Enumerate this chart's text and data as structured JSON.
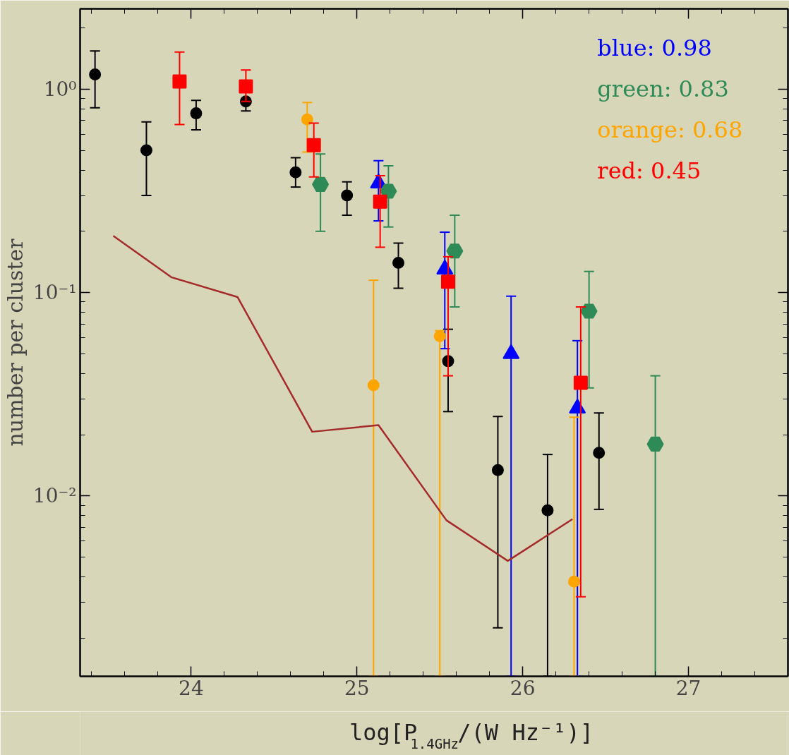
{
  "chart_data": {
    "type": "scatter",
    "xlabel": "log[P$_{1.4GHz}$/(W Hz⁻¹)]",
    "ylabel": "number per cluster",
    "log": "y",
    "xlim": [
      23.33,
      27.6
    ],
    "ylim": [
      0.0013,
      2.48
    ],
    "xticks": [
      24,
      25,
      26,
      27
    ],
    "yticks": [
      {
        "value": 0.01,
        "label": "10⁻²"
      },
      {
        "value": 0.1,
        "label": "10⁻¹"
      },
      {
        "value": 1,
        "label": "10⁰"
      }
    ],
    "legend": "top right",
    "grid": false,
    "series": [
      {
        "color": "#000000",
        "marker": "circle",
        "x": [
          23.42,
          23.73,
          24.03,
          24.33,
          24.63,
          24.94,
          25.25,
          25.55,
          25.85,
          26.15,
          26.46
        ],
        "values": [
          1.18,
          0.5,
          0.76,
          0.87,
          0.39,
          0.3,
          0.14,
          0.046,
          0.0134,
          0.0085,
          0.0163
        ],
        "errors": [
          [
            0.81,
            1.54
          ],
          [
            0.3,
            0.69
          ],
          [
            0.63,
            0.88
          ],
          [
            0.78,
            0.87
          ],
          [
            0.33,
            0.46
          ],
          [
            0.24,
            0.35
          ],
          [
            0.105,
            0.175
          ],
          [
            0.026,
            0.066
          ],
          [
            0.00225,
            0.0246
          ],
          [
            0.0013,
            0.016
          ],
          [
            0.0086,
            0.0256
          ]
        ]
      },
      {
        "name": "blue: 0.98",
        "color": "#0000ff",
        "marker": "triangle",
        "x": [
          25.13,
          25.53,
          25.93,
          26.33
        ],
        "values": [
          0.345,
          0.13,
          0.05,
          0.027
        ],
        "errors": [
          [
            0.225,
            0.445
          ],
          [
            0.053,
            0.198
          ],
          [
            0.0013,
            0.096
          ],
          [
            0.0013,
            0.058
          ]
        ]
      },
      {
        "name": "green: 0.83",
        "color": "#2e8b57",
        "x": [
          24.78,
          25.19,
          25.59,
          26.4,
          26.8
        ],
        "values": [
          0.34,
          0.315,
          0.16,
          0.081,
          0.018
        ],
        "errors": [
          [
            0.2,
            0.48
          ],
          [
            0.21,
            0.42
          ],
          [
            0.085,
            0.24
          ],
          [
            0.034,
            0.127
          ],
          [
            0.0013,
            0.039
          ]
        ]
      },
      {
        "name": "orange: 0.68",
        "color": "#ffa500",
        "marker": "circle",
        "x": [
          24.7,
          25.1,
          25.5,
          26.31
        ],
        "values": [
          0.71,
          0.035,
          0.061,
          0.0038
        ],
        "errors": [
          [
            0.49,
            0.86
          ],
          [
            0.0013,
            0.115
          ],
          [
            0.0013,
            0.065
          ],
          [
            0.0013,
            0.0244
          ]
        ]
      },
      {
        "name": "red: 0.45",
        "color": "#ff0000",
        "marker": "square",
        "x": [
          23.93,
          24.33,
          24.74,
          25.14,
          25.55,
          26.35
        ],
        "values": [
          1.09,
          1.03,
          0.53,
          0.28,
          0.113,
          0.036
        ],
        "errors": [
          [
            0.67,
            1.52
          ],
          [
            0.87,
            1.24
          ],
          [
            0.37,
            0.68
          ],
          [
            0.167,
            0.375
          ],
          [
            0.039,
            0.15
          ],
          [
            0.0032,
            0.085
          ]
        ]
      },
      {
        "type": "line",
        "color": "#a52a2a",
        "marker": "none",
        "x": [
          23.53,
          23.88,
          24.28,
          24.73,
          25.13,
          25.54,
          25.91,
          26.3
        ],
        "values": [
          0.19,
          0.119,
          0.095,
          0.0207,
          0.0223,
          0.0076,
          0.0048,
          0.0077
        ]
      }
    ]
  }
}
